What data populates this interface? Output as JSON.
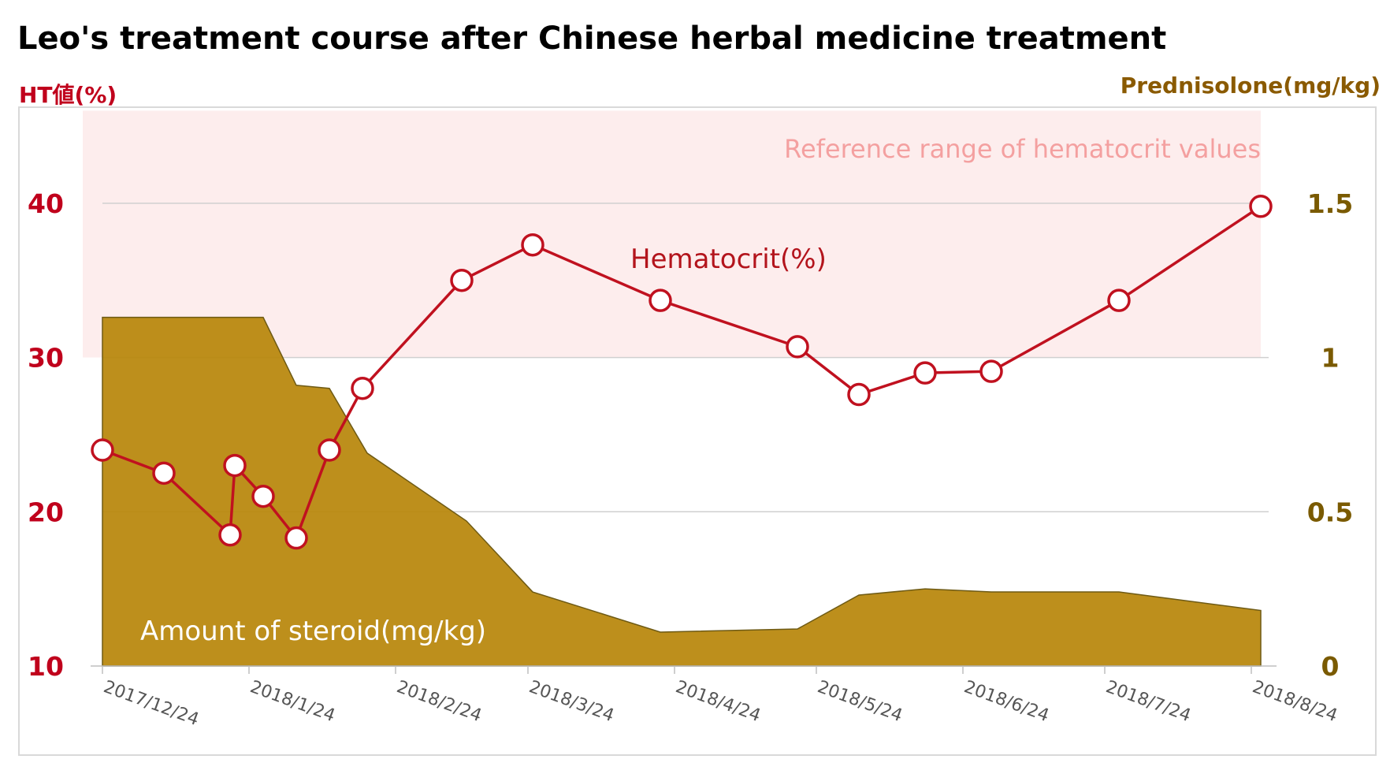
{
  "chart_data": {
    "type": "line",
    "title": "Leo's treatment course after Chinese herbal medicine treatment",
    "ylabel_left": "HT値(%)",
    "ylabel_right": "Prednisolone(mg/kg)",
    "ylim_left": [
      10,
      45
    ],
    "ylim_right": [
      0,
      1.75
    ],
    "yticks_left": [
      "10",
      "20",
      "30",
      "40"
    ],
    "yticks_left_values": [
      10,
      20,
      30,
      40
    ],
    "yticks_right": [
      "0",
      "0.5",
      "1",
      "1.5"
    ],
    "yticks_right_values": [
      0,
      0.5,
      1,
      1.5
    ],
    "xlim_days": [
      0,
      245
    ],
    "xticks": [
      {
        "label": "2017/12/24",
        "day": 0
      },
      {
        "label": "2018/1/24",
        "day": 31
      },
      {
        "label": "2018/2/24",
        "day": 62
      },
      {
        "label": "2018/3/24",
        "day": 90
      },
      {
        "label": "2018/4/24",
        "day": 121
      },
      {
        "label": "2018/5/24",
        "day": 151
      },
      {
        "label": "2018/6/24",
        "day": 182
      },
      {
        "label": "2018/7/24",
        "day": 212
      },
      {
        "label": "2018/8/24",
        "day": 243
      }
    ],
    "reference_range": {
      "label": "Reference range of hematocrit values",
      "from": 30,
      "to": 46
    },
    "series": [
      {
        "name": "Hematocrit(%)",
        "axis": "left",
        "color": "#c0111f",
        "points": [
          {
            "day": 0,
            "value": 24.0
          },
          {
            "day": 13,
            "value": 22.5
          },
          {
            "day": 27,
            "value": 18.5
          },
          {
            "day": 28,
            "value": 23.0
          },
          {
            "day": 34,
            "value": 21.0
          },
          {
            "day": 41,
            "value": 18.3
          },
          {
            "day": 48,
            "value": 24.0
          },
          {
            "day": 55,
            "value": 28.0
          },
          {
            "day": 76,
            "value": 35.0
          },
          {
            "day": 91,
            "value": 37.3
          },
          {
            "day": 118,
            "value": 33.7
          },
          {
            "day": 147,
            "value": 30.7
          },
          {
            "day": 160,
            "value": 27.6
          },
          {
            "day": 174,
            "value": 29.0
          },
          {
            "day": 188,
            "value": 29.1
          },
          {
            "day": 215,
            "value": 33.7
          },
          {
            "day": 245,
            "value": 39.8
          }
        ]
      },
      {
        "name": "Amount of steroid(mg/kg)",
        "axis": "right",
        "color": "#b8860b",
        "points": [
          {
            "day": 0,
            "value": 1.13
          },
          {
            "day": 34,
            "value": 1.13
          },
          {
            "day": 41,
            "value": 0.91
          },
          {
            "day": 48,
            "value": 0.9
          },
          {
            "day": 56,
            "value": 0.69
          },
          {
            "day": 77,
            "value": 0.47
          },
          {
            "day": 91,
            "value": 0.24
          },
          {
            "day": 118,
            "value": 0.11
          },
          {
            "day": 147,
            "value": 0.12
          },
          {
            "day": 160,
            "value": 0.23
          },
          {
            "day": 174,
            "value": 0.25
          },
          {
            "day": 188,
            "value": 0.24
          },
          {
            "day": 215,
            "value": 0.24
          },
          {
            "day": 245,
            "value": 0.18
          }
        ]
      }
    ],
    "annotations": {
      "reference": "Reference range of hematocrit values",
      "hematocrit": "Hematocrit(%)",
      "steroid": "Amount of steroid(mg/kg)"
    }
  }
}
